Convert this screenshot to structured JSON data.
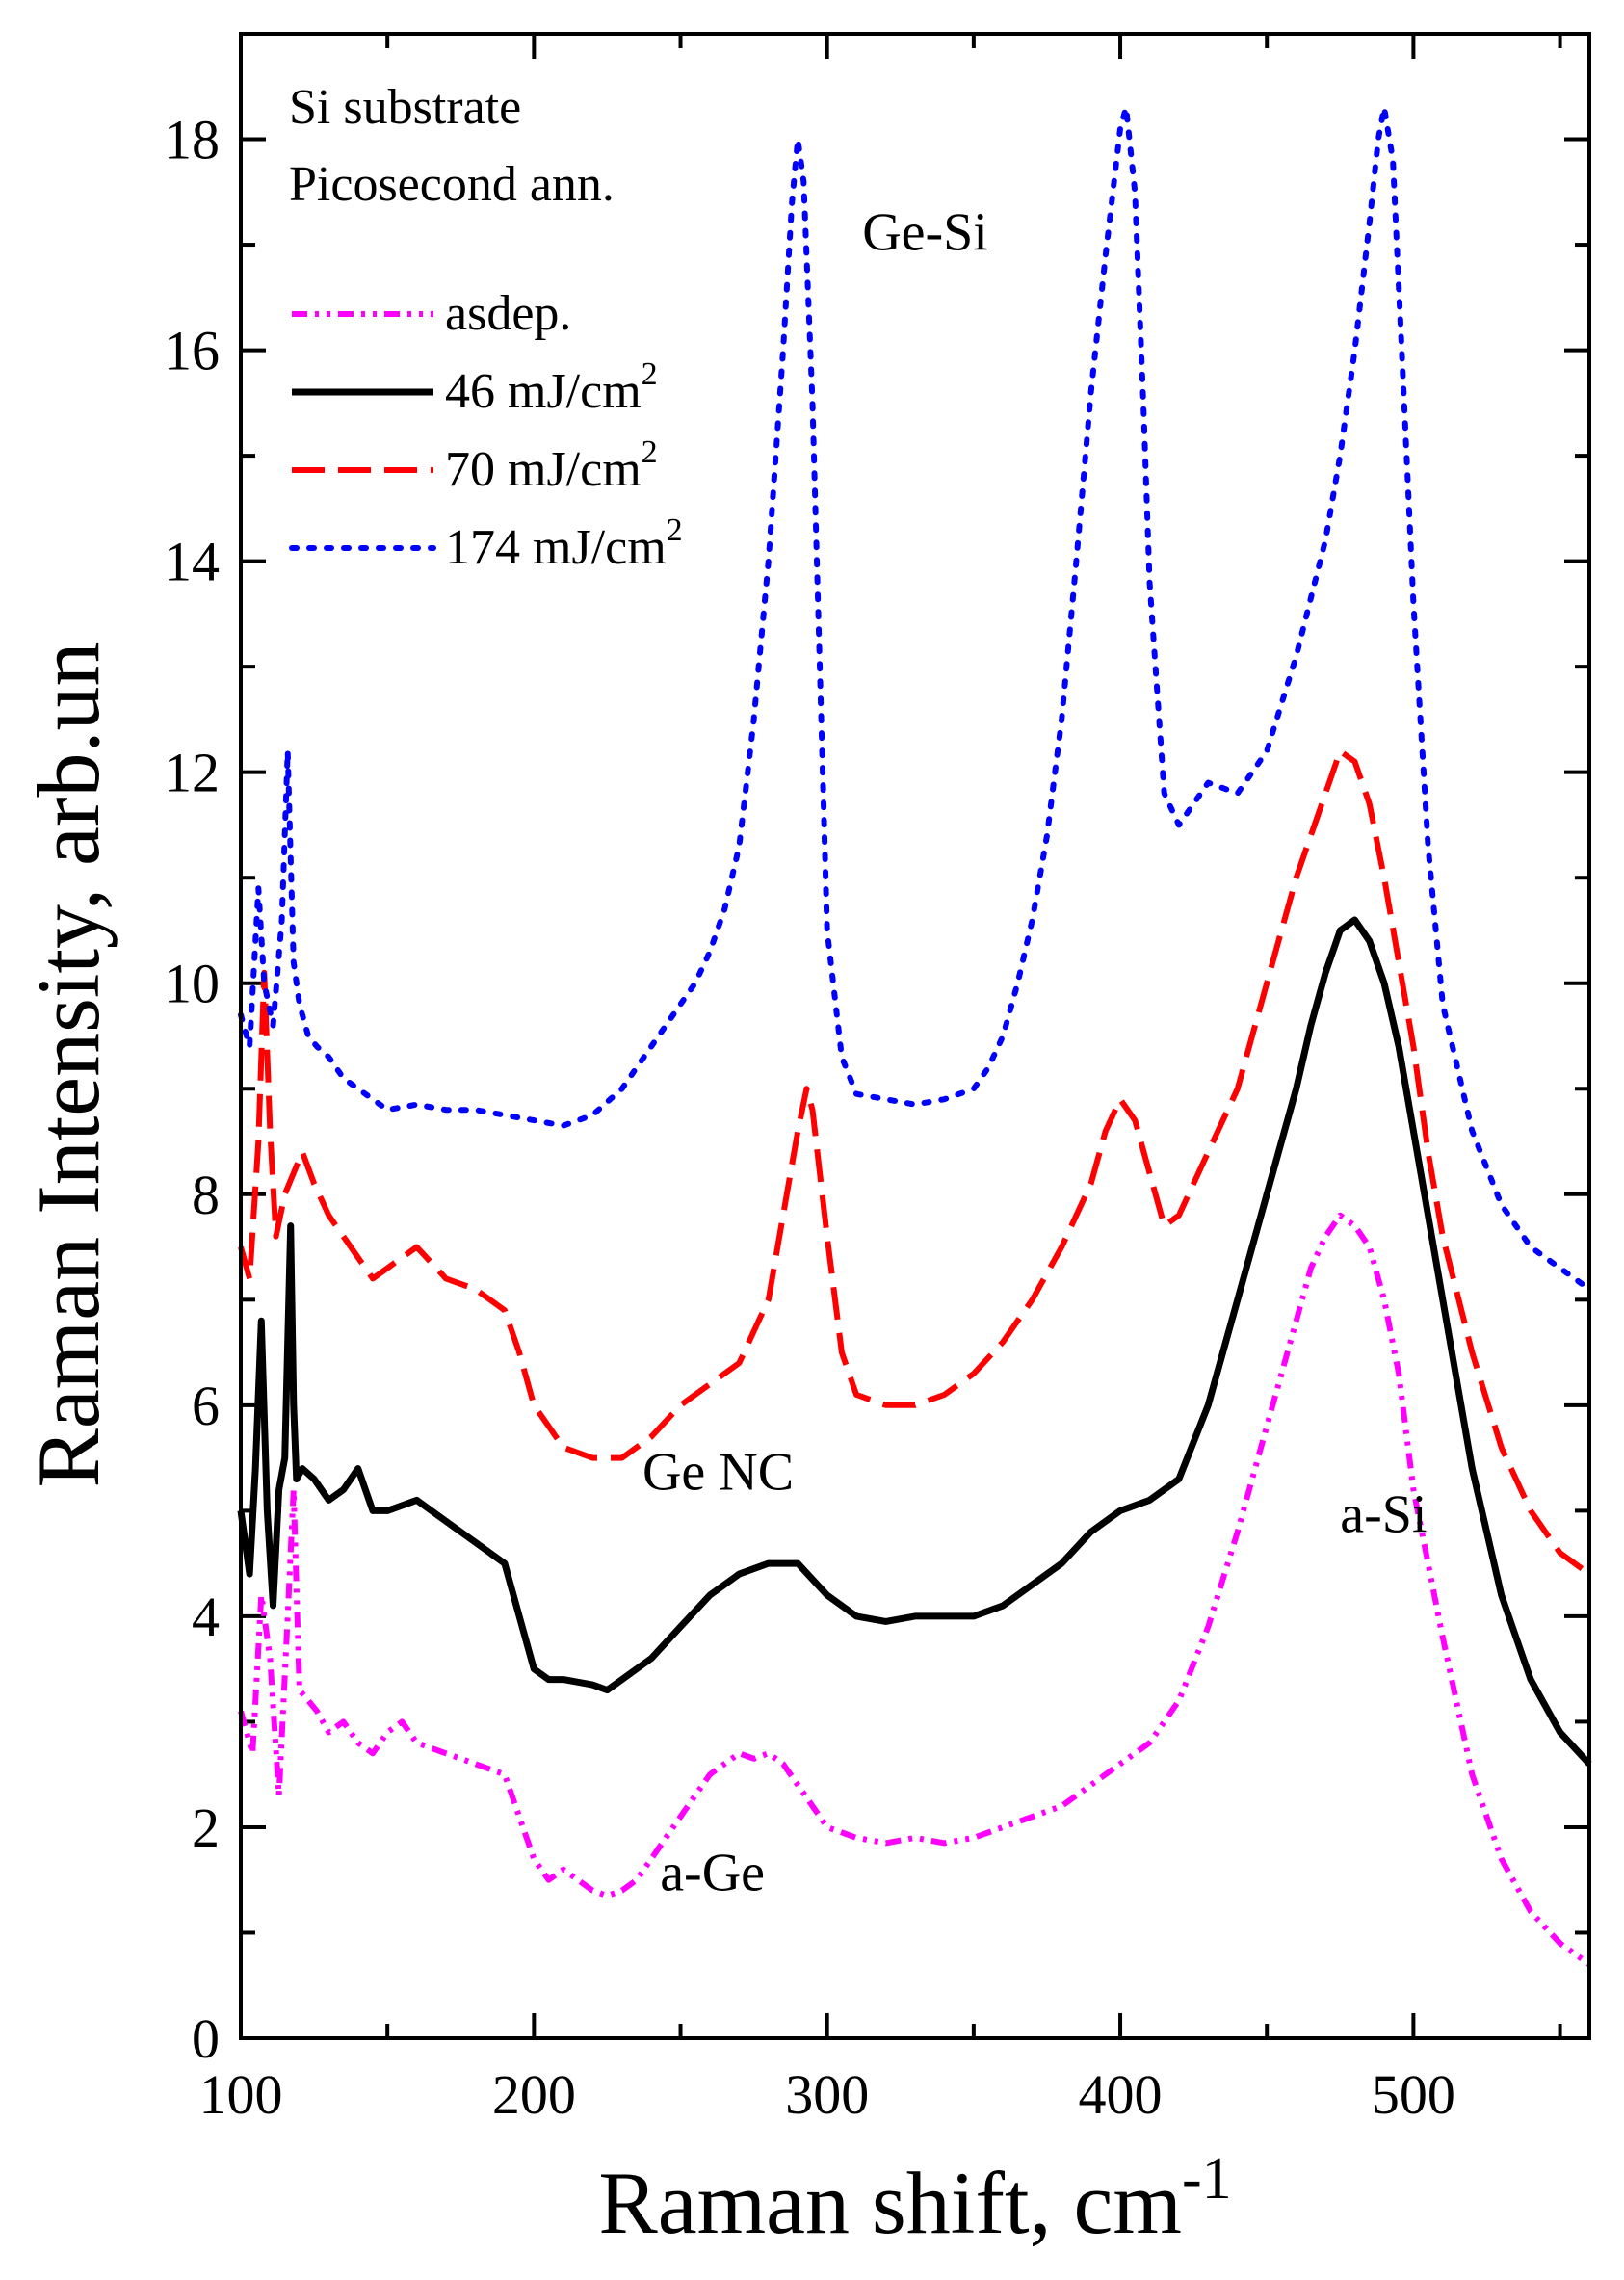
{
  "chart_data": {
    "type": "line",
    "xlabel": "Raman shift, cm",
    "xlabel_sup": "-1",
    "ylabel": "Raman Intensity, arb.un",
    "xlim": [
      100,
      560
    ],
    "ylim": [
      0,
      19
    ],
    "x_ticks": [
      "100",
      "200",
      "300",
      "400",
      "500"
    ],
    "y_ticks": [
      "0",
      "2",
      "4",
      "6",
      "8",
      "10",
      "12",
      "14",
      "16",
      "18"
    ],
    "notes": [
      "Si substrate",
      "Picosecond ann."
    ],
    "legend_position": "top-left",
    "legend_sup": "2",
    "annotations": [
      {
        "text": "Ge-Si",
        "x": 312,
        "y": 16.95
      },
      {
        "text": "Ge NC",
        "x": 237,
        "y": 5.2
      },
      {
        "text": "a-Si",
        "x": 475,
        "y": 4.8
      },
      {
        "text": "a-Ge",
        "x": 243,
        "y": 1.4
      }
    ],
    "series": [
      {
        "name": "asdep.",
        "color": "#ff00ff",
        "style": "dash-dot-dot",
        "x": [
          100,
          104,
          107,
          110,
          113,
          116,
          118,
          120,
          123,
          126,
          130,
          135,
          140,
          145,
          150,
          155,
          160,
          170,
          180,
          190,
          195,
          200,
          205,
          210,
          215,
          220,
          225,
          230,
          235,
          240,
          245,
          250,
          255,
          260,
          265,
          270,
          275,
          280,
          285,
          290,
          295,
          300,
          310,
          320,
          330,
          340,
          350,
          360,
          370,
          380,
          390,
          400,
          410,
          420,
          430,
          440,
          450,
          460,
          465,
          470,
          475,
          480,
          485,
          490,
          495,
          500,
          510,
          520,
          530,
          540,
          550,
          560
        ],
        "values": [
          3.1,
          2.7,
          4.2,
          3.6,
          2.3,
          4.0,
          5.2,
          3.3,
          3.2,
          3.1,
          2.9,
          3.0,
          2.8,
          2.7,
          2.9,
          3.0,
          2.8,
          2.7,
          2.6,
          2.5,
          2.1,
          1.7,
          1.5,
          1.6,
          1.5,
          1.4,
          1.35,
          1.4,
          1.5,
          1.7,
          1.9,
          2.1,
          2.3,
          2.5,
          2.6,
          2.7,
          2.65,
          2.7,
          2.6,
          2.4,
          2.2,
          2.0,
          1.9,
          1.85,
          1.9,
          1.85,
          1.9,
          2.0,
          2.1,
          2.2,
          2.4,
          2.6,
          2.8,
          3.2,
          3.9,
          4.8,
          5.8,
          6.8,
          7.3,
          7.6,
          7.8,
          7.7,
          7.5,
          7.0,
          6.3,
          5.2,
          3.8,
          2.5,
          1.7,
          1.2,
          0.9,
          0.7
        ]
      },
      {
        "name": "46 mJ/cm",
        "color": "#000000",
        "style": "solid",
        "x": [
          100,
          103,
          105,
          107,
          109,
          111,
          113,
          115,
          117,
          118,
          119,
          121,
          125,
          130,
          135,
          140,
          145,
          150,
          160,
          170,
          180,
          190,
          195,
          200,
          205,
          210,
          220,
          225,
          230,
          240,
          250,
          260,
          270,
          280,
          290,
          300,
          310,
          320,
          330,
          340,
          350,
          360,
          370,
          380,
          390,
          400,
          410,
          420,
          430,
          440,
          450,
          460,
          465,
          470,
          475,
          480,
          485,
          490,
          495,
          500,
          510,
          520,
          530,
          540,
          550,
          560
        ],
        "values": [
          5.0,
          4.4,
          5.4,
          6.8,
          5.0,
          4.1,
          5.2,
          5.5,
          7.7,
          6.0,
          5.3,
          5.4,
          5.3,
          5.1,
          5.2,
          5.4,
          5.0,
          5.0,
          5.1,
          4.9,
          4.7,
          4.5,
          4.0,
          3.5,
          3.4,
          3.4,
          3.35,
          3.3,
          3.4,
          3.6,
          3.9,
          4.2,
          4.4,
          4.5,
          4.5,
          4.2,
          4.0,
          3.95,
          4.0,
          4.0,
          4.0,
          4.1,
          4.3,
          4.5,
          4.8,
          5.0,
          5.1,
          5.3,
          6.0,
          7.0,
          8.0,
          9.0,
          9.6,
          10.1,
          10.5,
          10.6,
          10.4,
          10.0,
          9.4,
          8.6,
          7.0,
          5.4,
          4.2,
          3.4,
          2.9,
          2.6
        ]
      },
      {
        "name": "70 mJ/cm",
        "color": "#ff0000",
        "style": "dashed",
        "x": [
          100,
          103,
          106,
          108,
          110,
          112,
          115,
          118,
          121,
          125,
          130,
          135,
          140,
          145,
          150,
          160,
          170,
          180,
          190,
          195,
          200,
          205,
          210,
          220,
          230,
          240,
          250,
          260,
          270,
          280,
          285,
          290,
          293,
          295,
          300,
          305,
          310,
          320,
          330,
          340,
          350,
          360,
          370,
          380,
          390,
          395,
          400,
          405,
          410,
          415,
          420,
          430,
          440,
          450,
          460,
          470,
          475,
          480,
          485,
          490,
          495,
          500,
          505,
          510,
          520,
          530,
          540,
          550,
          560
        ],
        "values": [
          7.5,
          7.2,
          8.5,
          10.1,
          8.6,
          7.6,
          8.0,
          8.2,
          8.4,
          8.1,
          7.8,
          7.6,
          7.4,
          7.2,
          7.3,
          7.5,
          7.2,
          7.1,
          6.9,
          6.5,
          6.0,
          5.8,
          5.6,
          5.5,
          5.5,
          5.7,
          6.0,
          6.2,
          6.4,
          7.0,
          7.8,
          8.6,
          9.0,
          8.8,
          7.6,
          6.5,
          6.1,
          6.0,
          6.0,
          6.1,
          6.3,
          6.6,
          7.0,
          7.5,
          8.1,
          8.6,
          8.9,
          8.7,
          8.2,
          7.7,
          7.8,
          8.4,
          9.0,
          10.0,
          11.0,
          11.8,
          12.2,
          12.1,
          11.7,
          11.0,
          10.2,
          9.4,
          8.4,
          7.6,
          6.5,
          5.6,
          5.0,
          4.6,
          4.4
        ]
      },
      {
        "name": "174 mJ/cm",
        "color": "#0000ff",
        "style": "dotted",
        "x": [
          100,
          103,
          106,
          108,
          111,
          114,
          116,
          118,
          120,
          123,
          126,
          130,
          135,
          140,
          145,
          150,
          160,
          170,
          180,
          190,
          200,
          210,
          220,
          230,
          240,
          250,
          255,
          260,
          265,
          270,
          275,
          280,
          285,
          288,
          290,
          292,
          295,
          298,
          300,
          305,
          310,
          320,
          330,
          340,
          350,
          355,
          360,
          365,
          370,
          375,
          380,
          385,
          390,
          395,
          400,
          402,
          405,
          408,
          410,
          415,
          420,
          430,
          440,
          450,
          460,
          470,
          475,
          480,
          485,
          488,
          490,
          493,
          495,
          500,
          505,
          510,
          520,
          530,
          540,
          550,
          560
        ],
        "values": [
          9.7,
          9.4,
          10.9,
          10.0,
          9.6,
          10.6,
          12.2,
          10.2,
          9.8,
          9.5,
          9.4,
          9.3,
          9.1,
          9.0,
          8.9,
          8.8,
          8.85,
          8.8,
          8.8,
          8.75,
          8.7,
          8.65,
          8.75,
          9.0,
          9.4,
          9.8,
          10.0,
          10.3,
          10.7,
          11.3,
          12.5,
          14.0,
          16.0,
          17.4,
          18.0,
          17.6,
          15.5,
          12.5,
          10.5,
          9.3,
          8.95,
          8.9,
          8.85,
          8.9,
          9.0,
          9.2,
          9.5,
          10.0,
          10.6,
          11.4,
          12.5,
          14.0,
          15.6,
          16.9,
          18.1,
          18.3,
          17.5,
          15.4,
          13.8,
          11.8,
          11.5,
          11.9,
          11.8,
          12.2,
          13.1,
          14.2,
          15.0,
          16.0,
          17.2,
          18.0,
          18.3,
          17.8,
          16.6,
          13.6,
          11.3,
          9.8,
          8.6,
          7.9,
          7.5,
          7.3,
          7.1
        ]
      }
    ]
  }
}
